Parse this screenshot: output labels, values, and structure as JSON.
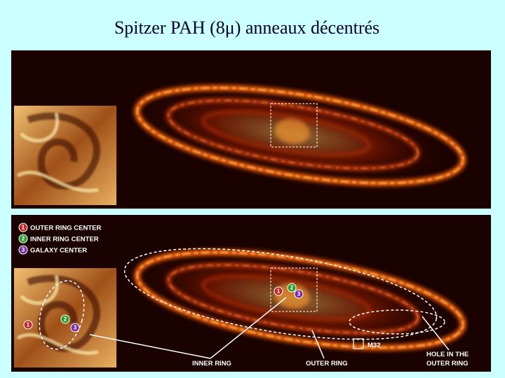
{
  "title": "Spitzer PAH (8μ) anneaux décentrés",
  "legend": [
    {
      "number": "1",
      "label": "OUTER RING CENTER",
      "color": "#c0282e"
    },
    {
      "number": "2",
      "label": "INNER RING CENTER",
      "color": "#2e9a2e"
    },
    {
      "number": "3",
      "label": "GALAXY CENTER",
      "color": "#7a2ea0"
    }
  ],
  "annotations": {
    "inner_ring": "INNER RING",
    "outer_ring": "OUTER RING",
    "hole": [
      "HOLE IN THE",
      "OUTER RING"
    ],
    "m32": "M32"
  }
}
